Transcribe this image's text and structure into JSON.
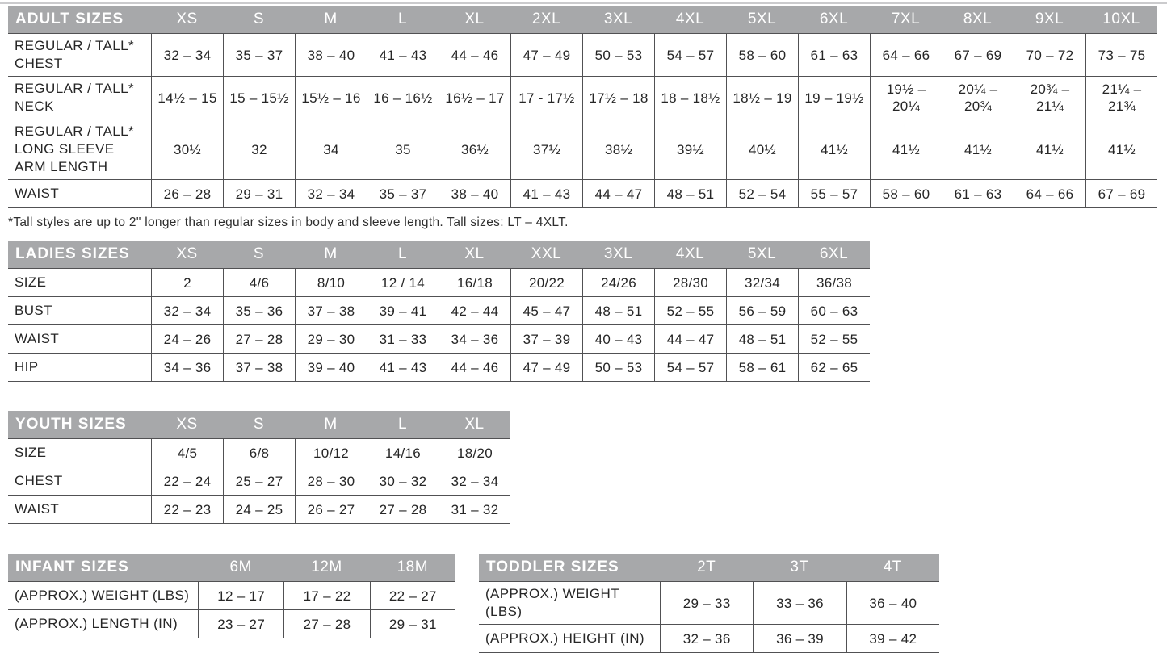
{
  "footnote": "*Tall styles are up to 2\" longer than regular sizes in body and sleeve length. Tall sizes: LT – 4XLT.",
  "colors": {
    "header_bg": "#a7a8aa",
    "header_text": "#ffffff",
    "grid_line": "#515153",
    "body_text": "#262626",
    "top_rule": "#cbcbcd"
  },
  "tables": {
    "adult": {
      "title": "ADULT SIZES",
      "columns": [
        "XS",
        "S",
        "M",
        "L",
        "XL",
        "2XL",
        "3XL",
        "4XL",
        "5XL",
        "6XL",
        "7XL",
        "8XL",
        "9XL",
        "10XL"
      ],
      "rows": [
        {
          "label": "REGULAR / TALL* CHEST",
          "values": [
            "32 – 34",
            "35 – 37",
            "38 – 40",
            "41 – 43",
            "44 – 46",
            "47 – 49",
            "50 – 53",
            "54 – 57",
            "58 – 60",
            "61 – 63",
            "64 – 66",
            "67 – 69",
            "70 – 72",
            "73 – 75"
          ]
        },
        {
          "label": "REGULAR / TALL* NECK",
          "values": [
            "14½ – 15",
            "15 – 15½",
            "15½ – 16",
            "16 – 16½",
            "16½ – 17",
            "17 - 17½",
            "17½ – 18",
            "18 – 18½",
            "18½ – 19",
            "19 – 19½",
            "19½ –\n20¼",
            "20¼ –\n20¾",
            "20¾ –\n21¼",
            "21¼ –\n21¾"
          ]
        },
        {
          "label": "REGULAR / TALL* LONG SLEEVE ARM LENGTH",
          "values": [
            "30½",
            "32",
            "34",
            "35",
            "36½",
            "37½",
            "38½",
            "39½",
            "40½",
            "41½",
            "41½",
            "41½",
            "41½",
            "41½"
          ]
        },
        {
          "label": "WAIST",
          "values": [
            "26 – 28",
            "29 – 31",
            "32 – 34",
            "35 – 37",
            "38 – 40",
            "41 – 43",
            "44 – 47",
            "48 – 51",
            "52 – 54",
            "55 – 57",
            "58 – 60",
            "61 – 63",
            "64 – 66",
            "67 – 69"
          ]
        }
      ]
    },
    "ladies": {
      "title": "LADIES SIZES",
      "columns": [
        "XS",
        "S",
        "M",
        "L",
        "XL",
        "XXL",
        "3XL",
        "4XL",
        "5XL",
        "6XL"
      ],
      "rows": [
        {
          "label": "SIZE",
          "values": [
            "2",
            "4/6",
            "8/10",
            "12 / 14",
            "16/18",
            "20/22",
            "24/26",
            "28/30",
            "32/34",
            "36/38"
          ]
        },
        {
          "label": "BUST",
          "values": [
            "32 – 34",
            "35 – 36",
            "37 – 38",
            "39 – 41",
            "42 – 44",
            "45 – 47",
            "48 – 51",
            "52 – 55",
            "56 – 59",
            "60 – 63"
          ]
        },
        {
          "label": "WAIST",
          "values": [
            "24 – 26",
            "27 – 28",
            "29 – 30",
            "31 – 33",
            "34 – 36",
            "37 – 39",
            "40 – 43",
            "44 – 47",
            "48 – 51",
            "52 – 55"
          ]
        },
        {
          "label": "HIP",
          "values": [
            "34 – 36",
            "37 – 38",
            "39 – 40",
            "41 – 43",
            "44 – 46",
            "47 – 49",
            "50 – 53",
            "54 – 57",
            "58 – 61",
            "62 – 65"
          ]
        }
      ]
    },
    "youth": {
      "title": "YOUTH SIZES",
      "columns": [
        "XS",
        "S",
        "M",
        "L",
        "XL"
      ],
      "rows": [
        {
          "label": "SIZE",
          "values": [
            "4/5",
            "6/8",
            "10/12",
            "14/16",
            "18/20"
          ]
        },
        {
          "label": "CHEST",
          "values": [
            "22 – 24",
            "25 – 27",
            "28 – 30",
            "30 – 32",
            "32 – 34"
          ]
        },
        {
          "label": "WAIST",
          "values": [
            "22 – 23",
            "24 – 25",
            "26 – 27",
            "27 – 28",
            "31 – 32"
          ]
        }
      ]
    },
    "infant": {
      "title": "INFANT SIZES",
      "columns": [
        "6M",
        "12M",
        "18M"
      ],
      "rows": [
        {
          "label": "(APPROX.) WEIGHT (LBS)",
          "values": [
            "12 – 17",
            "17 – 22",
            "22 – 27"
          ]
        },
        {
          "label": "(APPROX.) LENGTH (IN)",
          "values": [
            "23 – 27",
            "27 – 28",
            "29 – 31"
          ]
        }
      ]
    },
    "toddler": {
      "title": "TODDLER SIZES",
      "columns": [
        "2T",
        "3T",
        "4T"
      ],
      "rows": [
        {
          "label": "(APPROX.) WEIGHT (LBS)",
          "values": [
            "29 – 33",
            "33 – 36",
            "36 – 40"
          ]
        },
        {
          "label": "(APPROX.) HEIGHT (IN)",
          "values": [
            "32 – 36",
            "36 – 39",
            "39 – 42"
          ]
        }
      ]
    }
  }
}
